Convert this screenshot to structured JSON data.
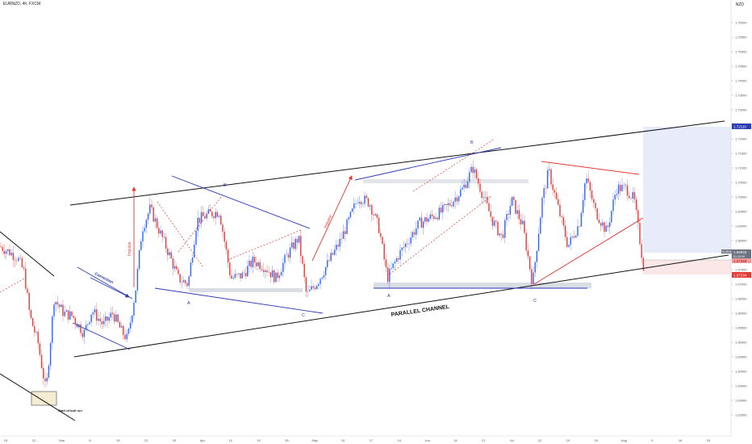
{
  "header": {
    "symbol": "EURNZD, 4h, FXCM",
    "currency": "NZD"
  },
  "annotations": {
    "impulse_1": "Impulse",
    "impulse_2": "Impulse",
    "correction": "Correction",
    "start_bull_run": "Start of bull run",
    "parallel_channel": "PARALLEL CHANNEL",
    "wave_a1": "A",
    "wave_b1": "B",
    "wave_c1": "C",
    "wave_a2": "A",
    "wave_b2": "B",
    "wave_c2": "C"
  },
  "price_tags": {
    "current_symbol": "EURNZD",
    "current": "1.66833",
    "countdown": "01:15:09",
    "target": "1.72110",
    "tag_2": "1.67398",
    "stop": "1.67234"
  },
  "chart_data": {
    "type": "candlestick",
    "title": "EURNZD, 4h, FXCM",
    "ylabel": "NZD",
    "ylim": [
      1.62,
      1.765
    ],
    "y_ticks": [
      "1.62500",
      "1.63000",
      "1.63500",
      "1.64000",
      "1.64500",
      "1.65000",
      "1.65500",
      "1.66000",
      "1.66500",
      "1.67000",
      "1.67500",
      "1.68000",
      "1.68500",
      "1.69000",
      "1.69500",
      "1.70000",
      "1.70500",
      "1.71000",
      "1.71500",
      "1.72000",
      "1.72500",
      "1.73000",
      "1.73500",
      "1.74000",
      "1.74500",
      "1.75000",
      "1.75500",
      "1.76000"
    ],
    "x_ticks": [
      "15",
      "22",
      "Mar",
      "8",
      "15",
      "22",
      "29",
      "Apr",
      "12",
      "19",
      "26",
      "May",
      "10",
      "17",
      "24",
      "Jun",
      "14",
      "21",
      "Jul",
      "12",
      "19",
      "26",
      "Aug",
      "9",
      "16",
      "23"
    ],
    "grid": false,
    "bull_color": "#2962ff",
    "bear_color": "#e53935",
    "price_path_key_levels": [
      {
        "x": 0,
        "y": 1.683
      },
      {
        "x": 12,
        "y": 1.681
      },
      {
        "x": 22,
        "y": 1.679
      },
      {
        "x": 30,
        "y": 1.674
      },
      {
        "x": 37,
        "y": 1.659
      },
      {
        "x": 47,
        "y": 1.65
      },
      {
        "x": 57,
        "y": 1.633
      },
      {
        "x": 67,
        "y": 1.665
      },
      {
        "x": 79,
        "y": 1.66
      },
      {
        "x": 90,
        "y": 1.659
      },
      {
        "x": 104,
        "y": 1.653
      },
      {
        "x": 114,
        "y": 1.661
      },
      {
        "x": 128,
        "y": 1.656
      },
      {
        "x": 140,
        "y": 1.66
      },
      {
        "x": 150,
        "y": 1.654
      },
      {
        "x": 158,
        "y": 1.651
      },
      {
        "x": 168,
        "y": 1.668
      },
      {
        "x": 176,
        "y": 1.689
      },
      {
        "x": 186,
        "y": 1.696
      },
      {
        "x": 198,
        "y": 1.688
      },
      {
        "x": 210,
        "y": 1.68
      },
      {
        "x": 221,
        "y": 1.672
      },
      {
        "x": 233,
        "y": 1.67
      },
      {
        "x": 244,
        "y": 1.692
      },
      {
        "x": 258,
        "y": 1.694
      },
      {
        "x": 272,
        "y": 1.695
      },
      {
        "x": 286,
        "y": 1.672
      },
      {
        "x": 300,
        "y": 1.673
      },
      {
        "x": 314,
        "y": 1.678
      },
      {
        "x": 328,
        "y": 1.676
      },
      {
        "x": 342,
        "y": 1.672
      },
      {
        "x": 356,
        "y": 1.68
      },
      {
        "x": 370,
        "y": 1.686
      },
      {
        "x": 380,
        "y": 1.666
      },
      {
        "x": 394,
        "y": 1.671
      },
      {
        "x": 408,
        "y": 1.678
      },
      {
        "x": 422,
        "y": 1.685
      },
      {
        "x": 434,
        "y": 1.693
      },
      {
        "x": 444,
        "y": 1.7
      },
      {
        "x": 458,
        "y": 1.698
      },
      {
        "x": 470,
        "y": 1.689
      },
      {
        "x": 480,
        "y": 1.672
      },
      {
        "x": 494,
        "y": 1.68
      },
      {
        "x": 508,
        "y": 1.686
      },
      {
        "x": 520,
        "y": 1.691
      },
      {
        "x": 534,
        "y": 1.693
      },
      {
        "x": 548,
        "y": 1.695
      },
      {
        "x": 562,
        "y": 1.699
      },
      {
        "x": 574,
        "y": 1.703
      },
      {
        "x": 586,
        "y": 1.71
      },
      {
        "x": 598,
        "y": 1.701
      },
      {
        "x": 610,
        "y": 1.692
      },
      {
        "x": 622,
        "y": 1.686
      },
      {
        "x": 634,
        "y": 1.699
      },
      {
        "x": 648,
        "y": 1.69
      },
      {
        "x": 660,
        "y": 1.67
      },
      {
        "x": 672,
        "y": 1.699
      },
      {
        "x": 680,
        "y": 1.709
      },
      {
        "x": 692,
        "y": 1.696
      },
      {
        "x": 704,
        "y": 1.683
      },
      {
        "x": 718,
        "y": 1.691
      },
      {
        "x": 726,
        "y": 1.707
      },
      {
        "x": 738,
        "y": 1.695
      },
      {
        "x": 752,
        "y": 1.688
      },
      {
        "x": 764,
        "y": 1.703
      },
      {
        "x": 776,
        "y": 1.703
      },
      {
        "x": 786,
        "y": 1.699
      },
      {
        "x": 798,
        "y": 1.675
      }
    ]
  }
}
